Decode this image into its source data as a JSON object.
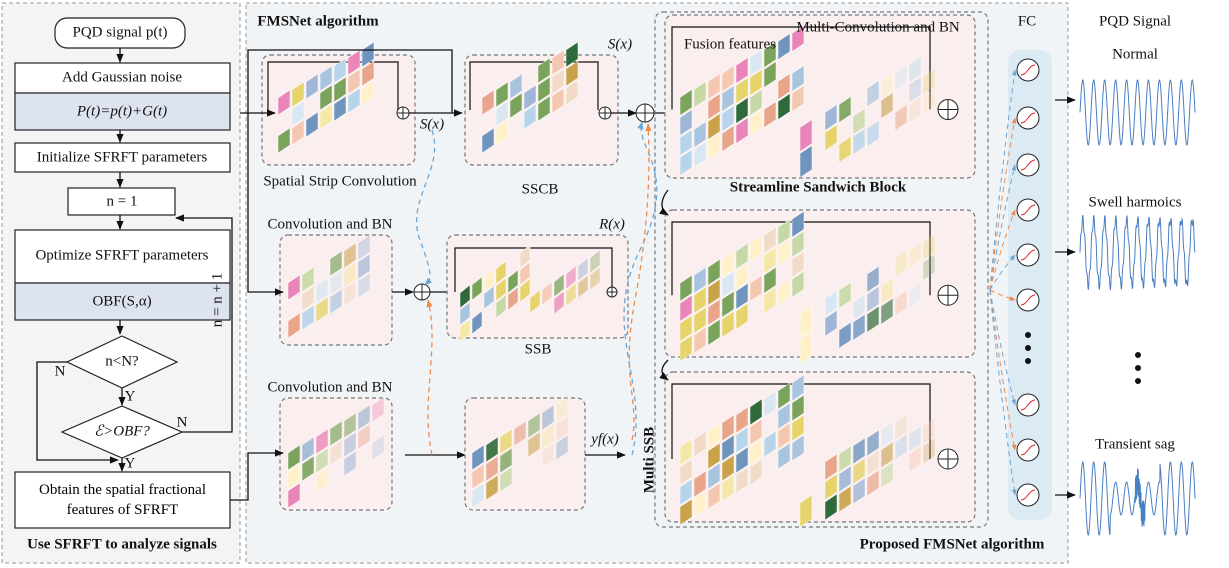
{
  "left_panel": {
    "start": "PQD signal p(t)",
    "noise": "Add Gaussian noise",
    "noise_formula": "P(t)=p(t)+G(t)",
    "init": "Initialize SFRFT parameters",
    "counter": "n = 1",
    "optimize": "Optimize SFRFT parameters",
    "objective": "OBF(S,α)",
    "decision1": "n<N?",
    "decision1_no": "N",
    "decision1_yes": "Y",
    "decision2": "ℰ>OBF?",
    "decision2_no": "N",
    "decision2_yes": "Y",
    "increment": "n = n + 1",
    "output": "Obtain the spatial fractional features of SFRFT",
    "caption": "Use SFRFT to analyze signals"
  },
  "middle_panel": {
    "title": "FMSNet algorithm",
    "ssc_label": "Spatial Strip Convolution",
    "ssc_output": "S(x)",
    "sscb_output": "S(x)",
    "sscb_label": "SSCB",
    "conv_bn_1": "Convolution and BN",
    "ssb_output": "R(x)",
    "ssb_label": "SSB",
    "conv_bn_2": "Convolution and BN",
    "branch_output": "yf(x)",
    "multi_conv": "Multi-Convolution and BN",
    "fusion": "Fusion features",
    "ssb_block": "Streamline Sandwich Block",
    "multi_ssb": "Multi SSB",
    "caption": "Proposed FMSNet algorithm"
  },
  "right_panel": {
    "fc": "FC",
    "title": "PQD Signal",
    "classes": [
      "Normal",
      "Swell harmoics",
      "Transient sag"
    ]
  }
}
